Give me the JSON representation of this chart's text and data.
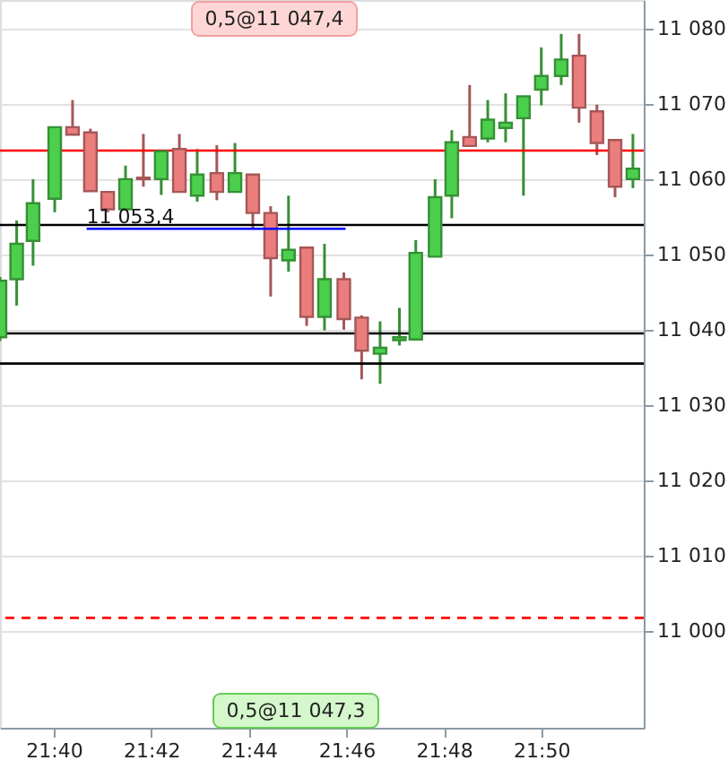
{
  "chart_data": {
    "type": "candlestick",
    "x": [
      21.6483,
      21.654,
      21.6596,
      21.667,
      21.6731,
      21.6792,
      21.6851,
      21.6912,
      21.6973,
      21.7034,
      21.7096,
      21.7157,
      21.7224,
      21.7286,
      21.7347,
      21.7408,
      21.7469,
      21.7531,
      21.7592,
      21.7658,
      21.7719,
      21.7782,
      21.7848,
      21.7904,
      21.797,
      21.8027,
      21.8088,
      21.815,
      21.8211,
      21.8272,
      21.8333,
      21.8401,
      21.8462,
      21.8523,
      21.8585,
      21.8646
    ],
    "ohlc": [
      [
        11039,
        11047,
        11038.5,
        11046.5
      ],
      [
        11046.7,
        11054.5,
        11043.2,
        11051.4
      ],
      [
        11051.8,
        11060,
        11048.5,
        11056.8
      ],
      [
        11057.4,
        11066.9,
        11055.6,
        11066.9
      ],
      [
        11066.9,
        11070.5,
        11065.9,
        11065.9
      ],
      [
        11066.2,
        11066.7,
        11058.4,
        11058.4
      ],
      [
        11058.3,
        11058.3,
        11055.6,
        11056
      ],
      [
        11056,
        11061.8,
        11056,
        11060
      ],
      [
        11060.2,
        11066,
        11059,
        11060
      ],
      [
        11060,
        11063.7,
        11057.9,
        11063.7
      ],
      [
        11064,
        11066,
        11058.3,
        11058.3
      ],
      [
        11057.8,
        11064,
        11057,
        11060.6
      ],
      [
        11060.8,
        11064.5,
        11057.2,
        11058.3
      ],
      [
        11058.3,
        11064.8,
        11058.3,
        11060.8
      ],
      [
        11060.6,
        11060.6,
        11053.4,
        11055.5
      ],
      [
        11055.5,
        11056.4,
        11044.4,
        11049.5
      ],
      [
        11049.2,
        11057.8,
        11047.7,
        11050.6
      ],
      [
        11050.9,
        11050.9,
        11040.5,
        11041.7
      ],
      [
        11041.7,
        11051.4,
        11039.9,
        11046.7
      ],
      [
        11046.7,
        11047.6,
        11040,
        11041.4
      ],
      [
        11041.6,
        11041.9,
        11033.4,
        11037.2
      ],
      [
        11036.8,
        11041.1,
        11032.8,
        11037.6
      ],
      [
        11038.6,
        11042.9,
        11037.9,
        11039
      ],
      [
        11038.7,
        11051.9,
        11038.7,
        11050.2
      ],
      [
        11049.7,
        11060,
        11049.7,
        11057.6
      ],
      [
        11057.8,
        11066.5,
        11054.8,
        11064.9
      ],
      [
        11065.6,
        11072.5,
        11064.4,
        11064.4
      ],
      [
        11065.4,
        11070.5,
        11064.9,
        11067.9
      ],
      [
        11066.8,
        11071.4,
        11064.9,
        11067.5
      ],
      [
        11068.1,
        11071,
        11057.8,
        11071
      ],
      [
        11071.9,
        11077.5,
        11069.8,
        11073.7
      ],
      [
        11073.7,
        11079.3,
        11072.5,
        11075.9
      ],
      [
        11076.4,
        11079.3,
        11067.5,
        11069.5
      ],
      [
        11069,
        11069.9,
        11063.2,
        11064.8
      ],
      [
        11065.2,
        11065.2,
        11057.6,
        11059
      ],
      [
        11060,
        11066,
        11058.8,
        11061.4
      ]
    ],
    "colors": [
      "#4ccf4c",
      "#4ccf4c",
      "#4ccf4c",
      "#4ccf4c",
      "#ec7d7d",
      "#ec7d7d",
      "#ec7d7d",
      "#4ccf4c",
      "#ec7d7d",
      "#4ccf4c",
      "#ec7d7d",
      "#4ccf4c",
      "#ec7d7d",
      "#4ccf4c",
      "#ec7d7d",
      "#ec7d7d",
      "#4ccf4c",
      "#ec7d7d",
      "#4ccf4c",
      "#ec7d7d",
      "#ec7d7d",
      "#4ccf4c",
      "#4ccf4c",
      "#4ccf4c",
      "#4ccf4c",
      "#4ccf4c",
      "#ec7d7d",
      "#4ccf4c",
      "#4ccf4c",
      "#4ccf4c",
      "#4ccf4c",
      "#4ccf4c",
      "#ec7d7d",
      "#ec7d7d",
      "#ec7d7d",
      "#4ccf4c"
    ],
    "series": [
      {
        "type": "line",
        "color": "#0000ff",
        "x": [
          21.6779,
          21.7664
        ],
        "values": [
          11053.4,
          11053.4
        ]
      }
    ],
    "xlim": [
      21.6483,
      21.8683
    ],
    "xticks": [
      {
        "value": 21.6667,
        "label": "21:40"
      },
      {
        "value": 21.7,
        "label": "21:42"
      },
      {
        "value": 21.7333,
        "label": "21:44"
      },
      {
        "value": 21.7667,
        "label": "21:46"
      },
      {
        "value": 21.8,
        "label": "21:48"
      },
      {
        "value": 21.8333,
        "label": "21:50"
      }
    ],
    "ylim": [
      10987.1,
      11083.8
    ],
    "yticks": [
      {
        "value": 11000,
        "label": "11 000"
      },
      {
        "value": 11010,
        "label": "11 010"
      },
      {
        "value": 11020,
        "label": "11 020"
      },
      {
        "value": 11030,
        "label": "11 030"
      },
      {
        "value": 11040,
        "label": "11 040"
      },
      {
        "value": 11050,
        "label": "11 050"
      },
      {
        "value": 11060,
        "label": "11 060"
      },
      {
        "value": 11070,
        "label": "11 070"
      },
      {
        "value": 11080,
        "label": "11 080"
      }
    ],
    "grid": "y",
    "ref_lines": [
      {
        "axis": "y",
        "value": 11063.8,
        "color": "#ff0000"
      },
      {
        "axis": "y",
        "value": 11053.9,
        "color": "#000000"
      },
      {
        "axis": "y",
        "value": 11039.5,
        "color": "#000000"
      },
      {
        "axis": "y",
        "value": 11035.5,
        "color": "#000000"
      },
      {
        "axis": "y",
        "value": 11001.7,
        "color": "#ff0000",
        "line_style": "dashed"
      }
    ],
    "annotations": [
      "0,5@11 047,4",
      "0,5@11 047,3",
      {
        "text": "11 053,4",
        "x": 21.6779,
        "y": 11053.4
      }
    ]
  }
}
